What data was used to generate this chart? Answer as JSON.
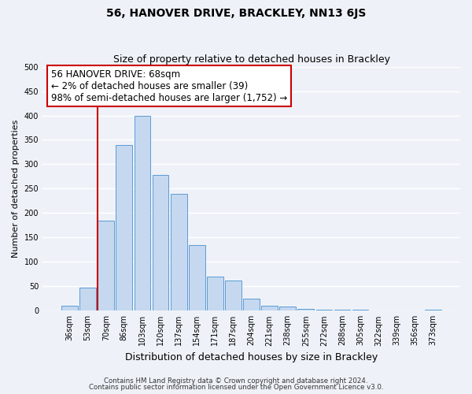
{
  "title": "56, HANOVER DRIVE, BRACKLEY, NN13 6JS",
  "subtitle": "Size of property relative to detached houses in Brackley",
  "xlabel": "Distribution of detached houses by size in Brackley",
  "ylabel": "Number of detached properties",
  "bar_color": "#c5d8f0",
  "bar_edge_color": "#5b9bd5",
  "bin_labels": [
    "36sqm",
    "53sqm",
    "70sqm",
    "86sqm",
    "103sqm",
    "120sqm",
    "137sqm",
    "154sqm",
    "171sqm",
    "187sqm",
    "204sqm",
    "221sqm",
    "238sqm",
    "255sqm",
    "272sqm",
    "288sqm",
    "305sqm",
    "322sqm",
    "339sqm",
    "356sqm",
    "373sqm"
  ],
  "bar_heights": [
    10,
    47,
    185,
    340,
    400,
    278,
    240,
    135,
    70,
    62,
    25,
    10,
    8,
    3,
    2,
    2,
    2,
    0,
    0,
    0,
    2
  ],
  "ylim": [
    0,
    500
  ],
  "yticks": [
    0,
    50,
    100,
    150,
    200,
    250,
    300,
    350,
    400,
    450,
    500
  ],
  "vline_color": "#cc0000",
  "annotation_text": "56 HANOVER DRIVE: 68sqm\n← 2% of detached houses are smaller (39)\n98% of semi-detached houses are larger (1,752) →",
  "annotation_box_color": "#ffffff",
  "annotation_box_edge": "#cc0000",
  "footer1": "Contains HM Land Registry data © Crown copyright and database right 2024.",
  "footer2": "Contains public sector information licensed under the Open Government Licence v3.0.",
  "bg_color": "#eef2f8",
  "plot_bg_color": "#eef2f8",
  "grid_color": "#ffffff"
}
